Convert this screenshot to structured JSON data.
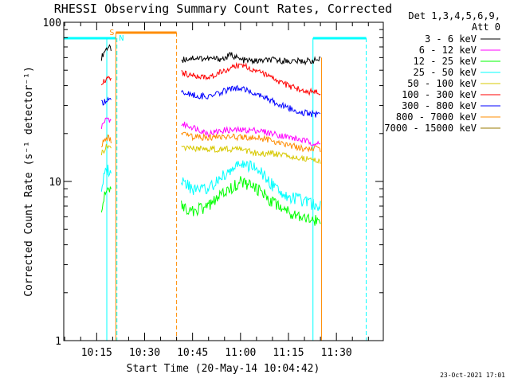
{
  "chart_data": {
    "type": "line",
    "title": "RHESSI Observing Summary Count Rates, Corrected",
    "xlabel": "Start Time (20-May-14 10:04:42)",
    "ylabel": "Corrected Count Rate (s⁻¹ detector⁻¹)",
    "y_scale": "log",
    "ylim": [
      1,
      100
    ],
    "xlim": [
      "10:04:42",
      "11:44:40"
    ],
    "x_ticks": [
      "10:15",
      "10:30",
      "10:45",
      "11:00",
      "11:15",
      "11:30"
    ],
    "y_ticks": [
      "1",
      "10",
      "100"
    ],
    "grid": false,
    "legend_position": "right",
    "legend_title": [
      "Det 1,3,4,5,6,9,",
      "Att 0"
    ],
    "series": [
      {
        "name": "3 - 6 keV",
        "color": "#000000",
        "segments": [
          {
            "x": [
              "10:16:30",
              "10:17:30",
              "10:18:30",
              "10:19:30"
            ],
            "y": [
              60,
              66,
              70,
              68
            ]
          },
          {
            "x": [
              "10:41:30",
              "10:45",
              "10:50",
              "10:55",
              "10:57",
              "11:00",
              "11:05",
              "11:10",
              "11:15",
              "11:20",
              "11:25"
            ],
            "y": [
              58,
              60,
              59,
              59,
              63,
              58,
              57,
              58,
              57,
              57,
              58
            ]
          }
        ]
      },
      {
        "name": "6 - 12 keV",
        "color": "#ff00ff",
        "segments": [
          {
            "x": [
              "10:16:30",
              "10:17:30",
              "10:18:30",
              "10:19:30"
            ],
            "y": [
              22,
              24,
              25,
              24
            ]
          },
          {
            "x": [
              "10:41:30",
              "10:45",
              "10:50",
              "10:55",
              "11:00",
              "11:05",
              "11:10",
              "11:15",
              "11:20",
              "11:25"
            ],
            "y": [
              23,
              22,
              20,
              21,
              21,
              21,
              20,
              19,
              18,
              17
            ]
          }
        ]
      },
      {
        "name": "12 - 25 keV",
        "color": "#00ff00",
        "segments": [
          {
            "x": [
              "10:16:30",
              "10:17:30",
              "10:18:30",
              "10:19:30"
            ],
            "y": [
              7,
              8,
              9,
              8.5
            ]
          },
          {
            "x": [
              "10:41:30",
              "10:45",
              "10:50",
              "10:55",
              "11:00",
              "11:05",
              "11:10",
              "11:15",
              "11:20",
              "11:25"
            ],
            "y": [
              7,
              6.5,
              7,
              8.5,
              10,
              9,
              7.5,
              6.5,
              6,
              5.5
            ]
          }
        ]
      },
      {
        "name": "25 - 50 keV",
        "color": "#00ffff",
        "segments": [
          {
            "x": [
              "10:16:30",
              "10:17:30",
              "10:18:30",
              "10:19:30"
            ],
            "y": [
              9,
              11,
              12,
              11
            ]
          },
          {
            "x": [
              "10:41:30",
              "10:45",
              "10:50",
              "10:55",
              "11:00",
              "11:05",
              "11:10",
              "11:15",
              "11:20",
              "11:25"
            ],
            "y": [
              10,
              9,
              9,
              11,
              13,
              12,
              9.5,
              8,
              7.5,
              7
            ]
          }
        ]
      },
      {
        "name": "50 - 100 keV",
        "color": "#d7c800",
        "segments": [
          {
            "x": [
              "10:16:30",
              "10:17:30",
              "10:18:30",
              "10:19:30"
            ],
            "y": [
              15,
              16,
              17,
              16
            ]
          },
          {
            "x": [
              "10:41:30",
              "10:45",
              "10:50",
              "10:55",
              "11:00",
              "11:05",
              "11:10",
              "11:15",
              "11:20",
              "11:25"
            ],
            "y": [
              16,
              16,
              16,
              16,
              16,
              15,
              15,
              14.5,
              14,
              13.5
            ]
          }
        ]
      },
      {
        "name": "100 - 300 keV",
        "color": "#ff0000",
        "segments": [
          {
            "x": [
              "10:16:30",
              "10:17:30",
              "10:18:30",
              "10:19:30"
            ],
            "y": [
              42,
              43,
              44,
              43
            ]
          },
          {
            "x": [
              "10:41:30",
              "10:45",
              "10:50",
              "10:55",
              "11:00",
              "11:05",
              "11:10",
              "11:15",
              "11:20",
              "11:25"
            ],
            "y": [
              48,
              46,
              45,
              50,
              54,
              50,
              44,
              40,
              37,
              36
            ]
          }
        ]
      },
      {
        "name": "300 - 800 keV",
        "color": "#0000ff",
        "segments": [
          {
            "x": [
              "10:16:30",
              "10:17:30",
              "10:18:30",
              "10:19:30"
            ],
            "y": [
              31,
              32,
              33,
              32
            ]
          },
          {
            "x": [
              "10:41:30",
              "10:45",
              "10:50",
              "10:55",
              "11:00",
              "11:05",
              "11:10",
              "11:15",
              "11:20",
              "11:25"
            ],
            "y": [
              36,
              35,
              34,
              37,
              39,
              36,
              32,
              29,
              27,
              26
            ]
          }
        ]
      },
      {
        "name": "800 - 7000 keV",
        "color": "#ff8c00",
        "segments": [
          {
            "x": [
              "10:16:30",
              "10:17:30",
              "10:18:30",
              "10:19:30"
            ],
            "y": [
              17,
              18,
              19,
              18
            ]
          },
          {
            "x": [
              "10:41:30",
              "10:45",
              "10:50",
              "10:55",
              "11:00",
              "11:05",
              "11:10",
              "11:15",
              "11:20",
              "11:25"
            ],
            "y": [
              20,
              19,
              19,
              19,
              19,
              19,
              18,
              17,
              16,
              16
            ]
          }
        ]
      },
      {
        "name": "7000 - 15000 keV",
        "color": "#9a7a00",
        "segments": []
      }
    ],
    "markers": [
      {
        "label": "S",
        "color": "#ff8c00"
      },
      {
        "label": "N",
        "color": "#00ffff"
      }
    ],
    "footer": "23-Oct-2021 17:01"
  }
}
